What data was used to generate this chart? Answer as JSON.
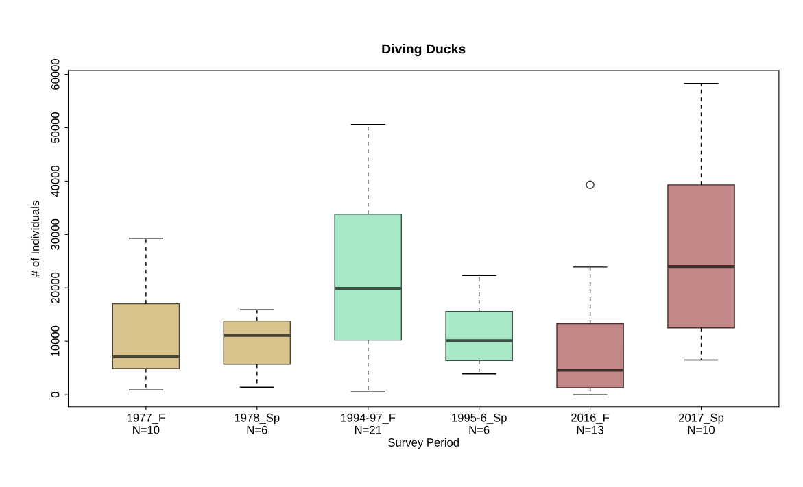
{
  "chart_data": {
    "type": "box",
    "title": "Diving Ducks",
    "xlabel": "Survey Period",
    "ylabel": "# of Individuals",
    "categories": [
      "1977_F\nN=10",
      "1978_Sp\nN=6",
      "1994-97_F\nN=21",
      "1995-6_Sp\nN=6",
      "2016_F\nN=13",
      "2017_Sp\nN=10"
    ],
    "colors": [
      "#d8c48c",
      "#d8c48c",
      "#a8e8c6",
      "#a8e8c6",
      "#c48888",
      "#c48888"
    ],
    "boxes": [
      {
        "low": 900,
        "q1": 4900,
        "median": 7100,
        "q3": 17000,
        "high": 29300
      },
      {
        "low": 1400,
        "q1": 5700,
        "median": 11100,
        "q3": 13800,
        "high": 15900
      },
      {
        "low": 500,
        "q1": 10200,
        "median": 19900,
        "q3": 33800,
        "high": 50600
      },
      {
        "low": 3900,
        "q1": 6400,
        "median": 10100,
        "q3": 15600,
        "high": 22300
      },
      {
        "low": 0,
        "q1": 1300,
        "median": 4600,
        "q3": 13300,
        "high": 23900,
        "outliers": [
          39300
        ]
      },
      {
        "low": 6500,
        "q1": 12500,
        "median": 24000,
        "q3": 39300,
        "high": 58300
      }
    ],
    "ylim": [
      -2250,
      60700
    ],
    "yticks": [
      0,
      10000,
      20000,
      30000,
      40000,
      50000,
      60000
    ],
    "grid": false,
    "legend": false
  }
}
